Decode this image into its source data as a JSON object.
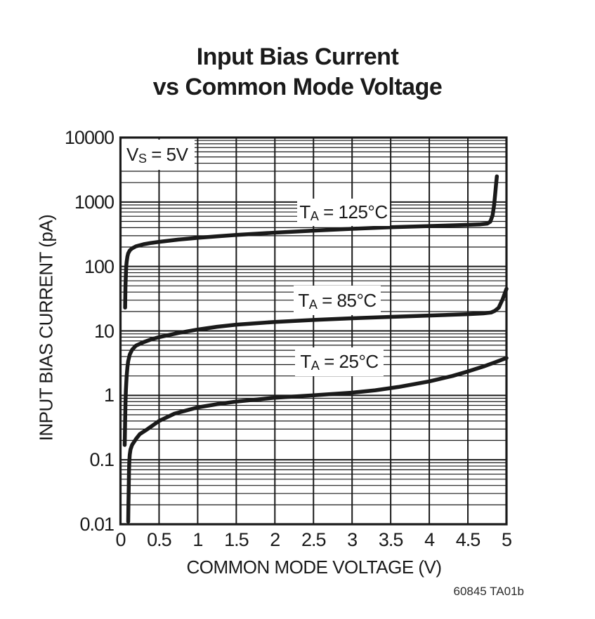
{
  "figure": {
    "title_line1": "Input Bias Current",
    "title_line2": "vs Common Mode Voltage",
    "footer_code": "60845 TA01b"
  },
  "chart_data": {
    "type": "line",
    "title": "Input Bias Current vs Common Mode Voltage",
    "xlabel": "COMMON MODE VOLTAGE (V)",
    "ylabel": "INPUT BIAS CURRENT (pA)",
    "x_scale": "linear",
    "y_scale": "log",
    "xlim": [
      0,
      5
    ],
    "ylim": [
      0.01,
      10000
    ],
    "x_ticks": [
      0,
      0.5,
      1,
      1.5,
      2,
      2.5,
      3,
      3.5,
      4,
      4.5,
      5
    ],
    "x_tick_labels": [
      "0",
      "0.5",
      "1",
      "1.5",
      "2",
      "2.5",
      "3",
      "3.5",
      "4",
      "4.5",
      "5"
    ],
    "y_ticks": [
      10000,
      1000,
      100,
      10,
      1,
      0.1,
      0.01
    ],
    "y_tick_labels": [
      "10000",
      "1000",
      "100",
      "10",
      "1",
      "0.1",
      "0.01"
    ],
    "grid": {
      "x_major": true,
      "y_major": true,
      "y_minor_multiples": [
        2,
        3,
        4,
        5,
        6,
        7,
        8,
        9
      ],
      "legend": "none"
    },
    "annotation": {
      "text": "VS = 5V",
      "sym": "V",
      "sub": "S",
      "rest": " = 5V"
    },
    "line_color": "#1a1a1a",
    "series": [
      {
        "name": "TA = 125°C",
        "label": {
          "sym": "T",
          "sub": "A",
          "rest": " = 125°C"
        },
        "points": [
          [
            0.06,
            23
          ],
          [
            0.062,
            32
          ],
          [
            0.065,
            50
          ],
          [
            0.07,
            75
          ],
          [
            0.075,
            100
          ],
          [
            0.08,
            118
          ],
          [
            0.09,
            143
          ],
          [
            0.1,
            160
          ],
          [
            0.12,
            177
          ],
          [
            0.15,
            191
          ],
          [
            0.2,
            205
          ],
          [
            0.3,
            221
          ],
          [
            0.4,
            232
          ],
          [
            0.5,
            241
          ],
          [
            0.75,
            261
          ],
          [
            1.0,
            278
          ],
          [
            1.25,
            293
          ],
          [
            1.5,
            308
          ],
          [
            2.0,
            335
          ],
          [
            2.5,
            360
          ],
          [
            3.0,
            384
          ],
          [
            3.5,
            406
          ],
          [
            4.0,
            424
          ],
          [
            4.3,
            434
          ],
          [
            4.5,
            442
          ],
          [
            4.65,
            449
          ],
          [
            4.75,
            462
          ],
          [
            4.79,
            495
          ],
          [
            4.82,
            620
          ],
          [
            4.84,
            900
          ],
          [
            4.855,
            1400
          ],
          [
            4.865,
            1900
          ],
          [
            4.875,
            2500
          ]
        ]
      },
      {
        "name": "TA = 85°C",
        "label": {
          "sym": "T",
          "sub": "A",
          "rest": " = 85°C"
        },
        "points": [
          [
            0.055,
            0.17
          ],
          [
            0.057,
            0.25
          ],
          [
            0.06,
            0.4
          ],
          [
            0.065,
            0.75
          ],
          [
            0.07,
            1.2
          ],
          [
            0.08,
            2.0
          ],
          [
            0.09,
            2.75
          ],
          [
            0.1,
            3.4
          ],
          [
            0.12,
            4.3
          ],
          [
            0.15,
            5.1
          ],
          [
            0.2,
            5.9
          ],
          [
            0.3,
            6.7
          ],
          [
            0.4,
            7.4
          ],
          [
            0.5,
            8.0
          ],
          [
            0.75,
            9.3
          ],
          [
            1.0,
            10.5
          ],
          [
            1.25,
            11.6
          ],
          [
            1.5,
            12.5
          ],
          [
            2.0,
            13.8
          ],
          [
            2.5,
            14.8
          ],
          [
            3.0,
            15.7
          ],
          [
            3.5,
            16.5
          ],
          [
            4.0,
            17.3
          ],
          [
            4.5,
            18.2
          ],
          [
            4.7,
            18.7
          ],
          [
            4.8,
            19.3
          ],
          [
            4.85,
            20.5
          ],
          [
            4.9,
            23
          ],
          [
            4.95,
            31
          ],
          [
            5.0,
            45
          ]
        ]
      },
      {
        "name": "TA = 25°C",
        "label": {
          "sym": "T",
          "sub": "A",
          "rest": " = 25°C"
        },
        "points": [
          [
            0.1,
            0.011
          ],
          [
            0.103,
            0.02
          ],
          [
            0.107,
            0.04
          ],
          [
            0.11,
            0.065
          ],
          [
            0.115,
            0.095
          ],
          [
            0.12,
            0.12
          ],
          [
            0.13,
            0.145
          ],
          [
            0.15,
            0.17
          ],
          [
            0.2,
            0.21
          ],
          [
            0.25,
            0.25
          ],
          [
            0.35,
            0.3
          ],
          [
            0.5,
            0.4
          ],
          [
            0.7,
            0.52
          ],
          [
            1.0,
            0.65
          ],
          [
            1.25,
            0.73
          ],
          [
            1.5,
            0.8
          ],
          [
            2.0,
            0.92
          ],
          [
            2.5,
            1.0
          ],
          [
            3.0,
            1.1
          ],
          [
            3.3,
            1.2
          ],
          [
            3.6,
            1.35
          ],
          [
            4.0,
            1.65
          ],
          [
            4.3,
            2.0
          ],
          [
            4.5,
            2.35
          ],
          [
            4.7,
            2.8
          ],
          [
            4.85,
            3.25
          ],
          [
            5.0,
            3.8
          ]
        ]
      }
    ]
  }
}
